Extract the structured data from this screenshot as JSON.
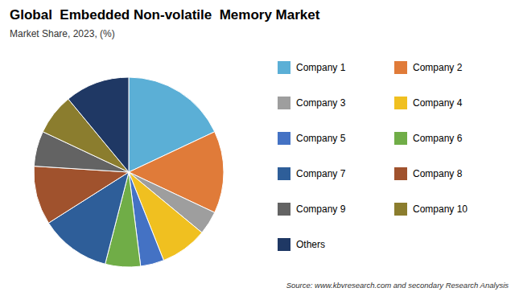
{
  "chart_data": {
    "type": "pie",
    "title": "Global  Embedded Non-volatile  Memory Market",
    "subtitle": "Market Share, 2023, (%)",
    "annotations": [
      "Source: www.kbvresearch.com and secondary Research Analysis"
    ],
    "categories": [
      "Company 1",
      "Company 2",
      "Company 3",
      "Company 4",
      "Company 5",
      "Company 6",
      "Company 7",
      "Company 8",
      "Company 9",
      "Company 10",
      "Others"
    ],
    "values": [
      18,
      14,
      4,
      8,
      4,
      6,
      12,
      10,
      6,
      7,
      11
    ],
    "colors": [
      "#5BAFD6",
      "#E07B39",
      "#9E9E9E",
      "#F0C020",
      "#4472C4",
      "#70AD47",
      "#2E5E99",
      "#A0522D",
      "#636363",
      "#8B7D2E",
      "#1F3864"
    ],
    "legend": "right"
  }
}
